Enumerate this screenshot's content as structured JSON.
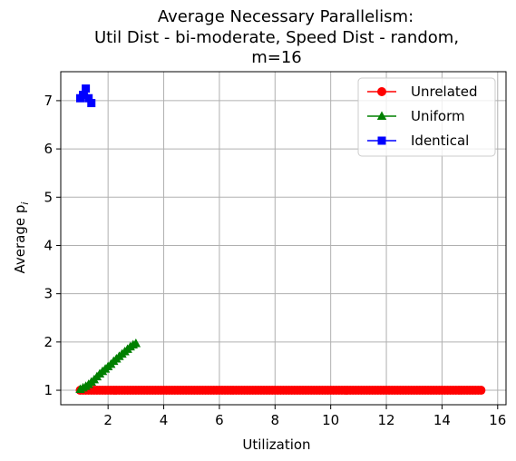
{
  "chart_data": {
    "type": "line",
    "title": [
      "Average Necessary Parallelism:",
      "Util Dist - bi-moderate, Speed Dist - random,",
      "m=16"
    ],
    "xlabel": "Utilization",
    "ylabel": "Average p",
    "ylabel_subscript": "i",
    "xlim": [
      0.3,
      16.3
    ],
    "ylim": [
      0.7,
      7.6
    ],
    "xticks": [
      2,
      4,
      6,
      8,
      10,
      12,
      14,
      16
    ],
    "yticks": [
      1,
      2,
      3,
      4,
      5,
      6,
      7
    ],
    "grid": true,
    "legend_position": "top-right",
    "series": [
      {
        "name": "Unrelated",
        "color": "#ff0000",
        "marker": "circle",
        "x": [
          1.0,
          1.1,
          1.2,
          1.3,
          1.4,
          1.5,
          1.6,
          1.7,
          1.8,
          1.9,
          2.0,
          2.1,
          2.2,
          2.3,
          2.4,
          2.5,
          2.6,
          2.7,
          2.8,
          2.9,
          3.0,
          3.1,
          3.2,
          3.3,
          3.4,
          3.5,
          3.6,
          3.7,
          3.8,
          3.9,
          4.0,
          4.1,
          4.2,
          4.3,
          4.4,
          4.5,
          4.6,
          4.7,
          4.8,
          4.9,
          5.0,
          5.1,
          5.2,
          5.3,
          5.4,
          5.5,
          5.6,
          5.7,
          5.8,
          5.9,
          6.0,
          6.1,
          6.2,
          6.3,
          6.4,
          6.5,
          6.6,
          6.7,
          6.8,
          6.9,
          7.0,
          7.1,
          7.2,
          7.3,
          7.4,
          7.5,
          7.6,
          7.7,
          7.8,
          7.9,
          8.0,
          8.1,
          8.2,
          8.3,
          8.4,
          8.5,
          8.6,
          8.7,
          8.8,
          8.9,
          9.0,
          9.1,
          9.2,
          9.3,
          9.4,
          9.5,
          9.6,
          9.7,
          9.8,
          9.9,
          10.0,
          10.1,
          10.2,
          10.3,
          10.4,
          10.5,
          10.6,
          10.7,
          10.8,
          10.9,
          11.0,
          11.1,
          11.2,
          11.3,
          11.4,
          11.5,
          11.6,
          11.7,
          11.8,
          11.9,
          12.0,
          12.1,
          12.2,
          12.3,
          12.4,
          12.5,
          12.6,
          12.7,
          12.8,
          12.9,
          13.0,
          13.1,
          13.2,
          13.3,
          13.4,
          13.5,
          13.6,
          13.7,
          13.8,
          13.9,
          14.0,
          14.1,
          14.2,
          14.3,
          14.4,
          14.5,
          14.6,
          14.7,
          14.8,
          14.9,
          15.0,
          15.1,
          15.2,
          15.3,
          15.4
        ],
        "y": [
          1.0,
          1.0,
          1.0,
          1.0,
          1.0,
          1.0,
          1.0,
          1.0,
          1.0,
          1.0,
          1.0,
          1.0,
          1.0,
          1.0,
          1.0,
          1.0,
          1.0,
          1.0,
          1.0,
          1.0,
          1.0,
          1.0,
          1.0,
          1.0,
          1.0,
          1.0,
          1.0,
          1.0,
          1.0,
          1.0,
          1.0,
          1.0,
          1.0,
          1.0,
          1.0,
          1.0,
          1.0,
          1.0,
          1.0,
          1.0,
          1.0,
          1.0,
          1.0,
          1.0,
          1.0,
          1.0,
          1.0,
          1.0,
          1.0,
          1.0,
          1.0,
          1.0,
          1.0,
          1.0,
          1.0,
          1.0,
          1.0,
          1.0,
          1.0,
          1.0,
          1.0,
          1.0,
          1.0,
          1.0,
          1.0,
          1.0,
          1.0,
          1.0,
          1.0,
          1.0,
          1.0,
          1.0,
          1.0,
          1.0,
          1.0,
          1.0,
          1.0,
          1.0,
          1.0,
          1.0,
          1.0,
          1.0,
          1.0,
          1.0,
          1.0,
          1.0,
          1.0,
          1.0,
          1.0,
          1.0,
          1.0,
          1.0,
          1.0,
          1.0,
          1.0,
          1.0,
          1.0,
          1.0,
          1.0,
          1.0,
          1.0,
          1.0,
          1.0,
          1.0,
          1.0,
          1.0,
          1.0,
          1.0,
          1.0,
          1.0,
          1.0,
          1.0,
          1.0,
          1.0,
          1.0,
          1.0,
          1.0,
          1.0,
          1.0,
          1.0,
          1.0,
          1.0,
          1.0,
          1.0,
          1.0,
          1.0,
          1.0,
          1.0,
          1.0,
          1.0,
          1.0,
          1.0,
          1.0,
          1.0,
          1.0,
          1.0,
          1.0,
          1.0,
          1.0,
          1.0,
          1.0,
          1.0,
          1.0,
          1.0,
          1.0
        ]
      },
      {
        "name": "Uniform",
        "color": "#008000",
        "marker": "triangle",
        "x": [
          1.0,
          1.1,
          1.2,
          1.3,
          1.4,
          1.5,
          1.6,
          1.7,
          1.8,
          1.9,
          2.0,
          2.1,
          2.2,
          2.3,
          2.4,
          2.5,
          2.6,
          2.7,
          2.8,
          2.9,
          3.0
        ],
        "y": [
          1.02,
          1.05,
          1.08,
          1.12,
          1.17,
          1.22,
          1.28,
          1.34,
          1.39,
          1.44,
          1.49,
          1.54,
          1.6,
          1.65,
          1.7,
          1.75,
          1.8,
          1.85,
          1.9,
          1.94,
          1.97
        ]
      },
      {
        "name": "Identical",
        "color": "#0000ff",
        "marker": "square",
        "x": [
          1.0,
          1.1,
          1.2,
          1.3,
          1.4
        ],
        "y": [
          7.05,
          7.12,
          7.25,
          7.05,
          6.95
        ]
      }
    ]
  }
}
